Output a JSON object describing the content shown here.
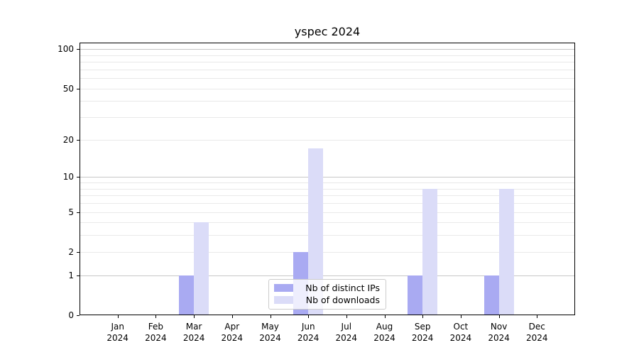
{
  "chart_data": {
    "type": "bar",
    "title": "yspec 2024",
    "categories": [
      "Jan",
      "Feb",
      "Mar",
      "Apr",
      "May",
      "Jun",
      "Jul",
      "Aug",
      "Sep",
      "Oct",
      "Nov",
      "Dec"
    ],
    "year_label": "2024",
    "series": [
      {
        "name": "Nb of distinct IPs",
        "color": "#a9aaf2",
        "values": [
          0,
          0,
          1,
          0,
          0,
          2,
          0,
          0,
          1,
          0,
          1,
          0
        ]
      },
      {
        "name": "Nb of downloads",
        "color": "#dbdcf8",
        "values": [
          0,
          0,
          4,
          0,
          0,
          17,
          0,
          0,
          8,
          0,
          8,
          0
        ]
      }
    ],
    "y_axis": {
      "scale": "log10(1+v)",
      "tick_values": [
        0,
        1,
        2,
        5,
        10,
        20,
        50,
        100
      ],
      "major_gridlines": [
        1,
        10,
        100
      ],
      "minor_gridlines": [
        2,
        3,
        4,
        5,
        6,
        7,
        8,
        9,
        20,
        30,
        40,
        50,
        60,
        70,
        80,
        90
      ],
      "ylim": [
        0,
        112
      ]
    },
    "legend": {
      "position": "lower center",
      "entries": [
        "Nb of distinct IPs",
        "Nb of downloads"
      ]
    },
    "grid": true,
    "colors": {
      "major_grid": "#c6c6c6",
      "minor_grid": "#e9e9e9",
      "spine": "#000000",
      "background": "#ffffff"
    }
  }
}
